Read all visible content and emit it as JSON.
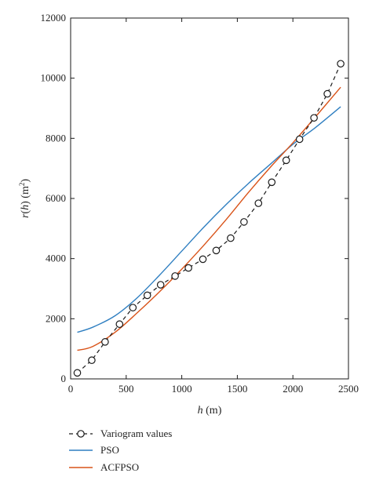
{
  "chart_data": {
    "type": "line",
    "xlabel": "h (m)",
    "ylabel": "r(h) (m²)",
    "xlim": [
      0,
      2500
    ],
    "ylim": [
      0,
      12000
    ],
    "x_ticks": [
      0,
      500,
      1000,
      1500,
      2000,
      2500
    ],
    "y_ticks": [
      0,
      2000,
      4000,
      6000,
      8000,
      10000,
      12000
    ],
    "grid": false,
    "legend_position": "bottom-left, below plot",
    "series": [
      {
        "name": "Variogram values",
        "style": "dashed-with-circle-markers",
        "color": "#1a1a1a",
        "x": [
          60,
          190,
          310,
          440,
          560,
          690,
          810,
          940,
          1060,
          1190,
          1310,
          1440,
          1560,
          1690,
          1810,
          1940,
          2060,
          2190,
          2310,
          2430
        ],
        "y": [
          200,
          620,
          1230,
          1820,
          2370,
          2780,
          3130,
          3420,
          3690,
          3980,
          4270,
          4680,
          5220,
          5840,
          6540,
          7270,
          7970,
          8680,
          9480,
          10480
        ]
      },
      {
        "name": "PSO",
        "style": "solid",
        "color": "#2f7fc1",
        "x": [
          60,
          200,
          400,
          600,
          800,
          1000,
          1200,
          1400,
          1600,
          1800,
          2000,
          2200,
          2430
        ],
        "y": [
          1550,
          1720,
          2100,
          2700,
          3450,
          4250,
          5050,
          5800,
          6500,
          7150,
          7800,
          8350,
          9050
        ]
      },
      {
        "name": "ACFPSO",
        "style": "solid",
        "color": "#d95319",
        "x": [
          60,
          200,
          400,
          600,
          800,
          1000,
          1200,
          1400,
          1600,
          1800,
          2000,
          2200,
          2430
        ],
        "y": [
          950,
          1080,
          1550,
          2200,
          2900,
          3650,
          4450,
          5300,
          6200,
          7050,
          7850,
          8700,
          9700
        ]
      }
    ]
  }
}
